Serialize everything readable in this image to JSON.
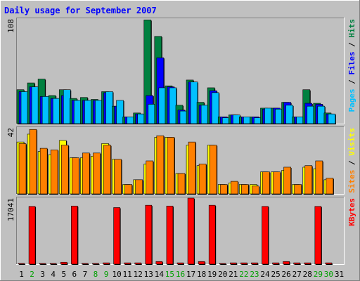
{
  "chart_data": [
    {
      "type": "bar",
      "title": "Daily usage for September 2007",
      "categories": [
        "1",
        "2",
        "3",
        "4",
        "5",
        "6",
        "7",
        "8",
        "9",
        "10",
        "11",
        "12",
        "13",
        "14",
        "15",
        "16",
        "17",
        "18",
        "19",
        "20",
        "21",
        "22",
        "23",
        "24",
        "25",
        "26",
        "27",
        "28",
        "29",
        "30",
        "31"
      ],
      "ylabel_parts": [
        "Pages",
        " / ",
        "Files",
        " / ",
        "Hits"
      ],
      "ymax_label": "108",
      "ylim": [
        0,
        108
      ],
      "series": [
        {
          "name": "Hits",
          "color": "#008040",
          "values": [
            35,
            42,
            46,
            29,
            35,
            26,
            27,
            25,
            33,
            18,
            7,
            11,
            107,
            90,
            39,
            19,
            45,
            22,
            37,
            7,
            9,
            7,
            7,
            16,
            16,
            22,
            7,
            35,
            21,
            11,
            0
          ]
        },
        {
          "name": "Files",
          "color": "#0000ff",
          "values": [
            33,
            38,
            28,
            26,
            29,
            24,
            24,
            24,
            32,
            18,
            7,
            10,
            29,
            68,
            38,
            14,
            43,
            19,
            34,
            7,
            9,
            7,
            7,
            15,
            16,
            22,
            7,
            21,
            20,
            10,
            0
          ]
        },
        {
          "name": "Pages",
          "color": "#00c0ff",
          "values": [
            33,
            38,
            28,
            26,
            35,
            24,
            24,
            24,
            33,
            24,
            7,
            10,
            20,
            37,
            37,
            13,
            43,
            19,
            32,
            6,
            9,
            7,
            6,
            16,
            15,
            19,
            7,
            18,
            18,
            10,
            0
          ]
        }
      ]
    },
    {
      "type": "bar",
      "categories": [
        "1",
        "2",
        "3",
        "4",
        "5",
        "6",
        "7",
        "8",
        "9",
        "10",
        "11",
        "12",
        "13",
        "14",
        "15",
        "16",
        "17",
        "18",
        "19",
        "20",
        "21",
        "22",
        "23",
        "24",
        "25",
        "26",
        "27",
        "28",
        "29",
        "30",
        "31"
      ],
      "ylabel_parts": [
        "Sites",
        " / ",
        "Visits"
      ],
      "ymax_label": "42",
      "ylim": [
        0,
        42
      ],
      "series": [
        {
          "name": "Visits",
          "color": "#ffff00",
          "values": [
            33,
            38,
            27,
            25,
            34,
            23,
            23,
            24,
            32,
            22,
            6,
            9,
            19,
            36,
            36,
            13,
            31,
            18,
            31,
            6,
            7,
            6,
            6,
            14,
            14,
            15,
            6,
            17,
            16,
            9,
            0
          ]
        },
        {
          "name": "Sites",
          "color": "#ff8000",
          "values": [
            32,
            41,
            29,
            28,
            31,
            23,
            26,
            26,
            31,
            22,
            6,
            9,
            21,
            37,
            36,
            13,
            33,
            19,
            31,
            6,
            8,
            6,
            5,
            14,
            14,
            17,
            6,
            18,
            21,
            10,
            0
          ]
        }
      ]
    },
    {
      "type": "bar",
      "categories": [
        "1",
        "2",
        "3",
        "4",
        "5",
        "6",
        "7",
        "8",
        "9",
        "10",
        "11",
        "12",
        "13",
        "14",
        "15",
        "16",
        "17",
        "18",
        "19",
        "20",
        "21",
        "22",
        "23",
        "24",
        "25",
        "26",
        "27",
        "28",
        "29",
        "30",
        "31"
      ],
      "ylabel_parts": [
        "KBytes"
      ],
      "ymax_label": "17041",
      "ylim": [
        0,
        17041
      ],
      "series": [
        {
          "name": "KBytes",
          "color": "#ff0000",
          "values": [
            170,
            14900,
            170,
            170,
            500,
            15000,
            170,
            170,
            340,
            14600,
            340,
            340,
            15200,
            680,
            15000,
            340,
            17041,
            680,
            15200,
            170,
            340,
            340,
            340,
            14900,
            340,
            680,
            340,
            340,
            14900,
            340,
            0
          ]
        }
      ]
    }
  ],
  "weekend_days": [
    "2",
    "8",
    "9",
    "15",
    "16",
    "22",
    "23",
    "29",
    "30"
  ],
  "colors": {
    "background": "#c0c0c0",
    "frame_light": "#ffffff",
    "frame_dark": "#808080",
    "title": "#0000ff",
    "weekday_label": "#000000",
    "weekend_label": "#00a000",
    "Pages": "#00c0ff",
    "Files": "#0000ff",
    "Hits": "#008040",
    "Visits": "#ffff00",
    "Sites": "#ff8000",
    "KBytes": "#ff0000",
    "separator": "#000000"
  }
}
